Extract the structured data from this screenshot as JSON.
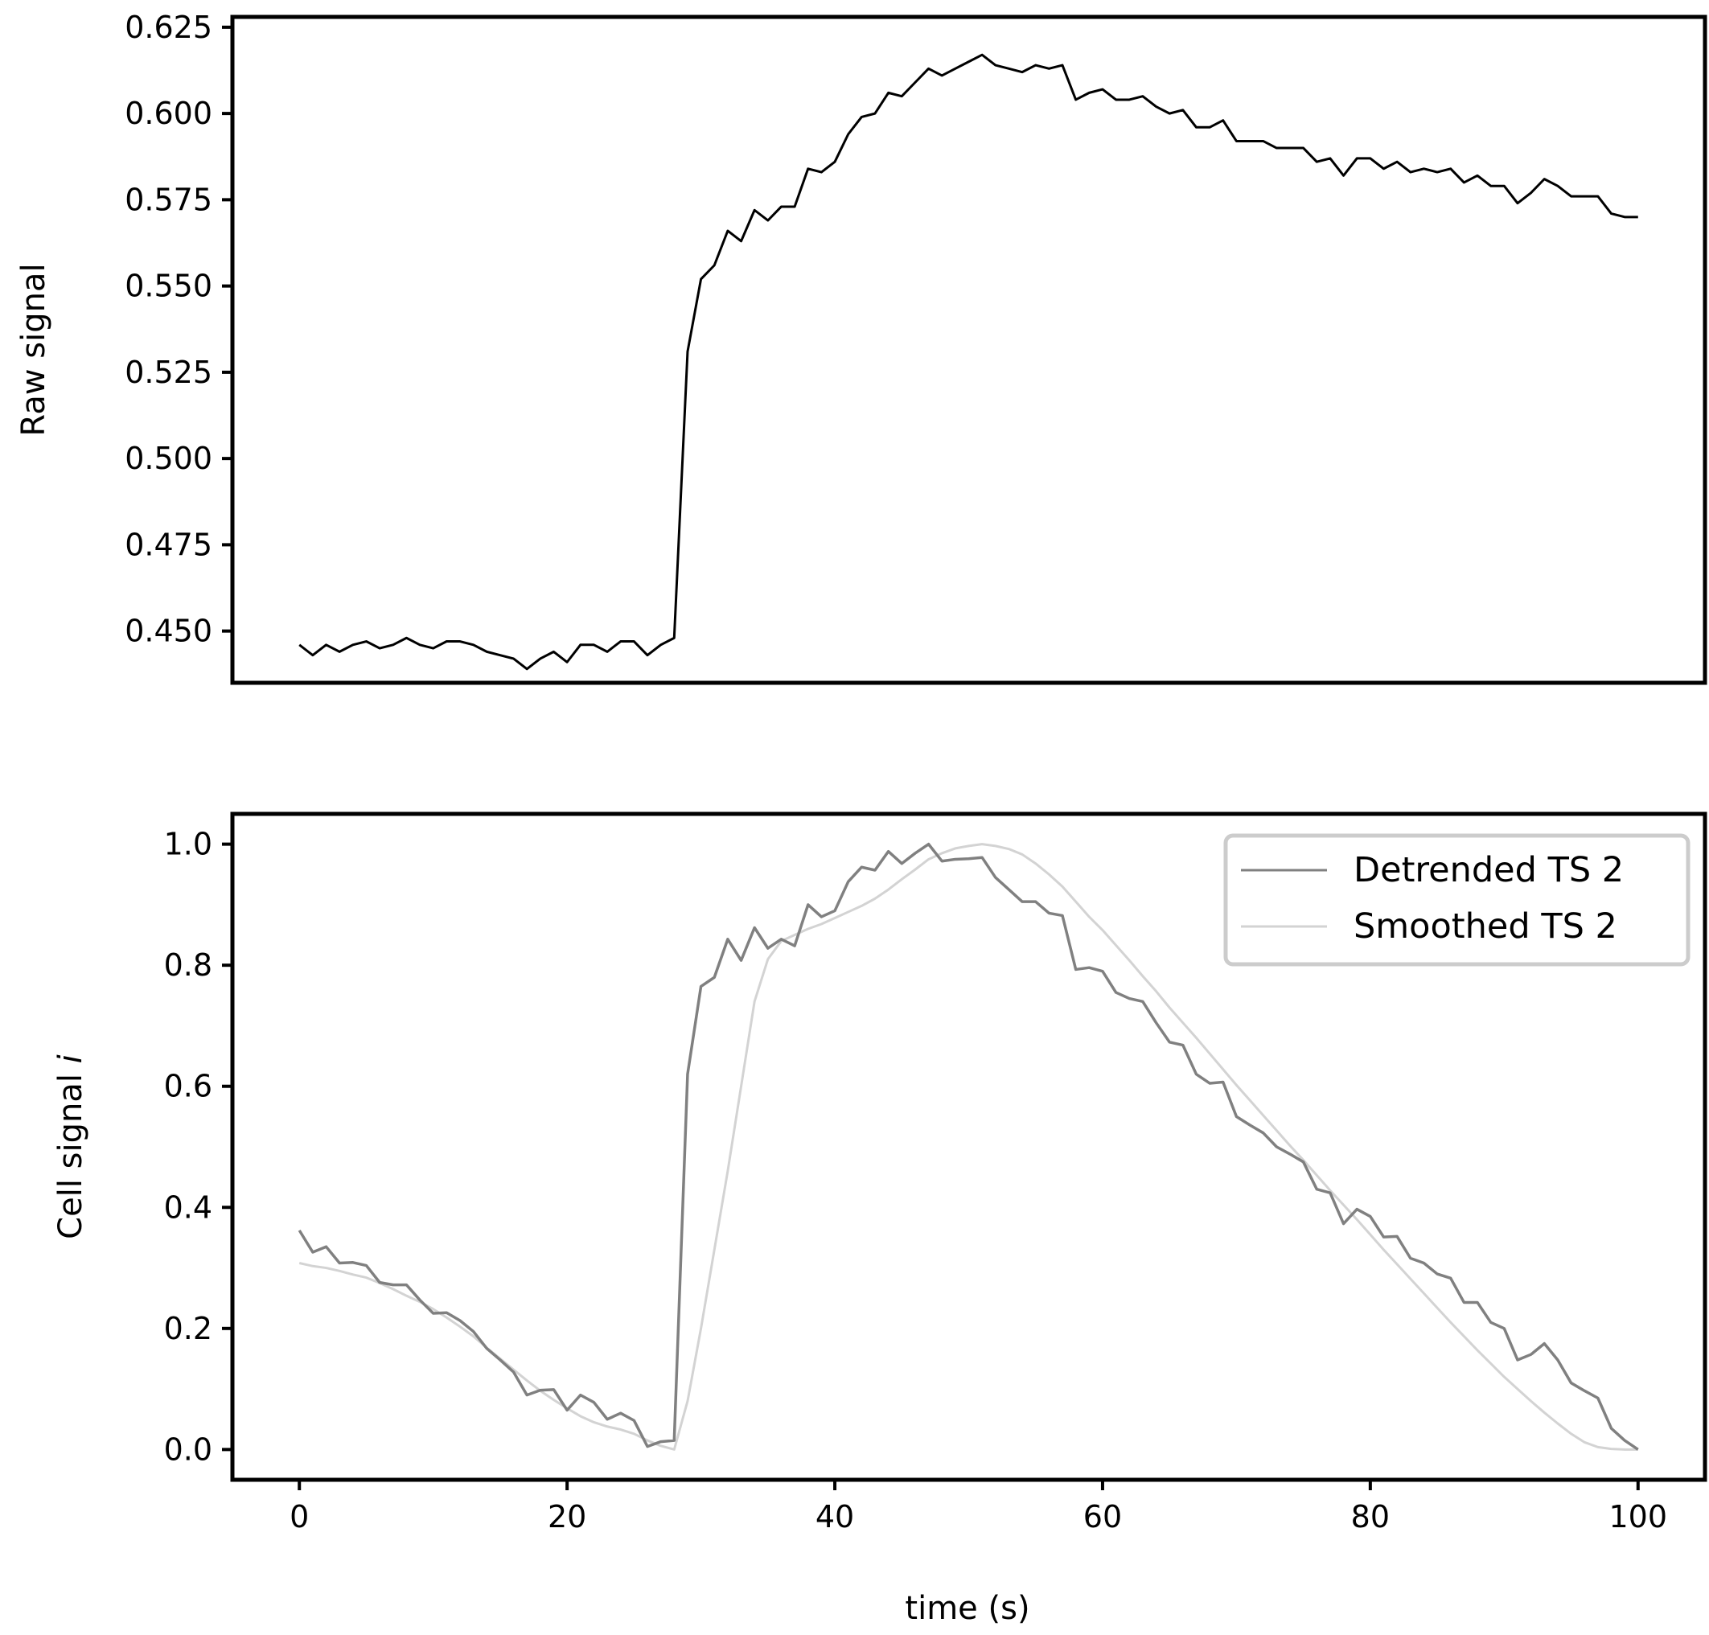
{
  "colors": {
    "raw_line": "#000000",
    "detrended_line": "#808080",
    "smoothed_line": "#d3d3d3",
    "axes": "#000000",
    "legend_border": "#cccccc"
  },
  "chart_data": [
    {
      "type": "line",
      "title": "",
      "xlabel": "",
      "ylabel": "Raw signal",
      "xlim": [
        -5,
        105
      ],
      "ylim": [
        0.435,
        0.628
      ],
      "x_ticks_shown": false,
      "y_ticks": [
        "0.450",
        "0.475",
        "0.500",
        "0.525",
        "0.550",
        "0.575",
        "0.600",
        "0.625"
      ],
      "grid": false,
      "series": [
        {
          "values": [
            0.446,
            0.443,
            0.446,
            0.444,
            0.446,
            0.447,
            0.445,
            0.446,
            0.448,
            0.446,
            0.445,
            0.447,
            0.447,
            0.446,
            0.444,
            0.443,
            0.442,
            0.439,
            0.442,
            0.444,
            0.441,
            0.446,
            0.446,
            0.444,
            0.447,
            0.447,
            0.443,
            0.446,
            0.448,
            0.531,
            0.552,
            0.556,
            0.566,
            0.563,
            0.572,
            0.569,
            0.573,
            0.573,
            0.584,
            0.583,
            0.586,
            0.594,
            0.599,
            0.6,
            0.606,
            0.605,
            0.609,
            0.613,
            0.611,
            0.613,
            0.615,
            0.617,
            0.614,
            0.613,
            0.612,
            0.614,
            0.613,
            0.614,
            0.604,
            0.606,
            0.607,
            0.604,
            0.604,
            0.605,
            0.602,
            0.6,
            0.601,
            0.596,
            0.596,
            0.598,
            0.592,
            0.592,
            0.592,
            0.59,
            0.59,
            0.59,
            0.586,
            0.587,
            0.582,
            0.587,
            0.587,
            0.584,
            0.586,
            0.583,
            0.584,
            0.583,
            0.584,
            0.58,
            0.582,
            0.579,
            0.579,
            0.574,
            0.577,
            0.581,
            0.579,
            0.576,
            0.576,
            0.576,
            0.571,
            0.57,
            0.57
          ]
        }
      ]
    },
    {
      "type": "line",
      "title": "",
      "xlabel": "time (s)",
      "ylabel_text": "Cell signal ",
      "ylabel_italic": "i",
      "xlim": [
        -5,
        105
      ],
      "ylim": [
        -0.05,
        1.05
      ],
      "x_ticks": [
        "0",
        "20",
        "40",
        "60",
        "80",
        "100"
      ],
      "y_ticks": [
        "0.0",
        "0.2",
        "0.4",
        "0.6",
        "0.8",
        "1.0"
      ],
      "grid": false,
      "legend_position": "top-right",
      "series": [
        {
          "name": "Detrended TS 2",
          "values": [
            0.362,
            0.326,
            0.335,
            0.308,
            0.309,
            0.304,
            0.276,
            0.272,
            0.272,
            0.247,
            0.225,
            0.226,
            0.213,
            0.195,
            0.167,
            0.148,
            0.128,
            0.09,
            0.098,
            0.099,
            0.065,
            0.09,
            0.078,
            0.05,
            0.06,
            0.048,
            0.005,
            0.013,
            0.015,
            0.62,
            0.765,
            0.78,
            0.843,
            0.808,
            0.862,
            0.828,
            0.843,
            0.832,
            0.9,
            0.88,
            0.89,
            0.938,
            0.962,
            0.957,
            0.988,
            0.968,
            0.985,
            1.0,
            0.972,
            0.975,
            0.976,
            0.978,
            0.945,
            0.925,
            0.905,
            0.905,
            0.886,
            0.882,
            0.793,
            0.796,
            0.79,
            0.755,
            0.745,
            0.74,
            0.705,
            0.673,
            0.668,
            0.62,
            0.605,
            0.607,
            0.55,
            0.536,
            0.523,
            0.5,
            0.488,
            0.475,
            0.43,
            0.424,
            0.373,
            0.397,
            0.385,
            0.351,
            0.352,
            0.316,
            0.308,
            0.29,
            0.283,
            0.243,
            0.243,
            0.21,
            0.2,
            0.148,
            0.157,
            0.175,
            0.148,
            0.11,
            0.097,
            0.085,
            0.035,
            0.015,
            0.0
          ]
        },
        {
          "name": "Smoothed TS 2",
          "values": [
            0.308,
            0.303,
            0.3,
            0.295,
            0.289,
            0.284,
            0.275,
            0.265,
            0.254,
            0.244,
            0.232,
            0.218,
            0.203,
            0.187,
            0.168,
            0.15,
            0.132,
            0.114,
            0.097,
            0.082,
            0.068,
            0.055,
            0.045,
            0.038,
            0.033,
            0.026,
            0.015,
            0.006,
            0.0,
            0.08,
            0.2,
            0.33,
            0.46,
            0.6,
            0.74,
            0.81,
            0.84,
            0.85,
            0.86,
            0.868,
            0.878,
            0.888,
            0.898,
            0.91,
            0.925,
            0.942,
            0.958,
            0.975,
            0.985,
            0.993,
            0.997,
            1.0,
            0.997,
            0.992,
            0.983,
            0.968,
            0.95,
            0.93,
            0.905,
            0.88,
            0.858,
            0.833,
            0.808,
            0.782,
            0.757,
            0.73,
            0.705,
            0.68,
            0.654,
            0.628,
            0.602,
            0.577,
            0.552,
            0.527,
            0.502,
            0.478,
            0.453,
            0.428,
            0.404,
            0.38,
            0.355,
            0.33,
            0.306,
            0.282,
            0.258,
            0.234,
            0.21,
            0.187,
            0.164,
            0.142,
            0.12,
            0.1,
            0.08,
            0.061,
            0.043,
            0.026,
            0.012,
            0.004,
            0.001,
            0.0,
            0.0
          ]
        }
      ]
    }
  ]
}
